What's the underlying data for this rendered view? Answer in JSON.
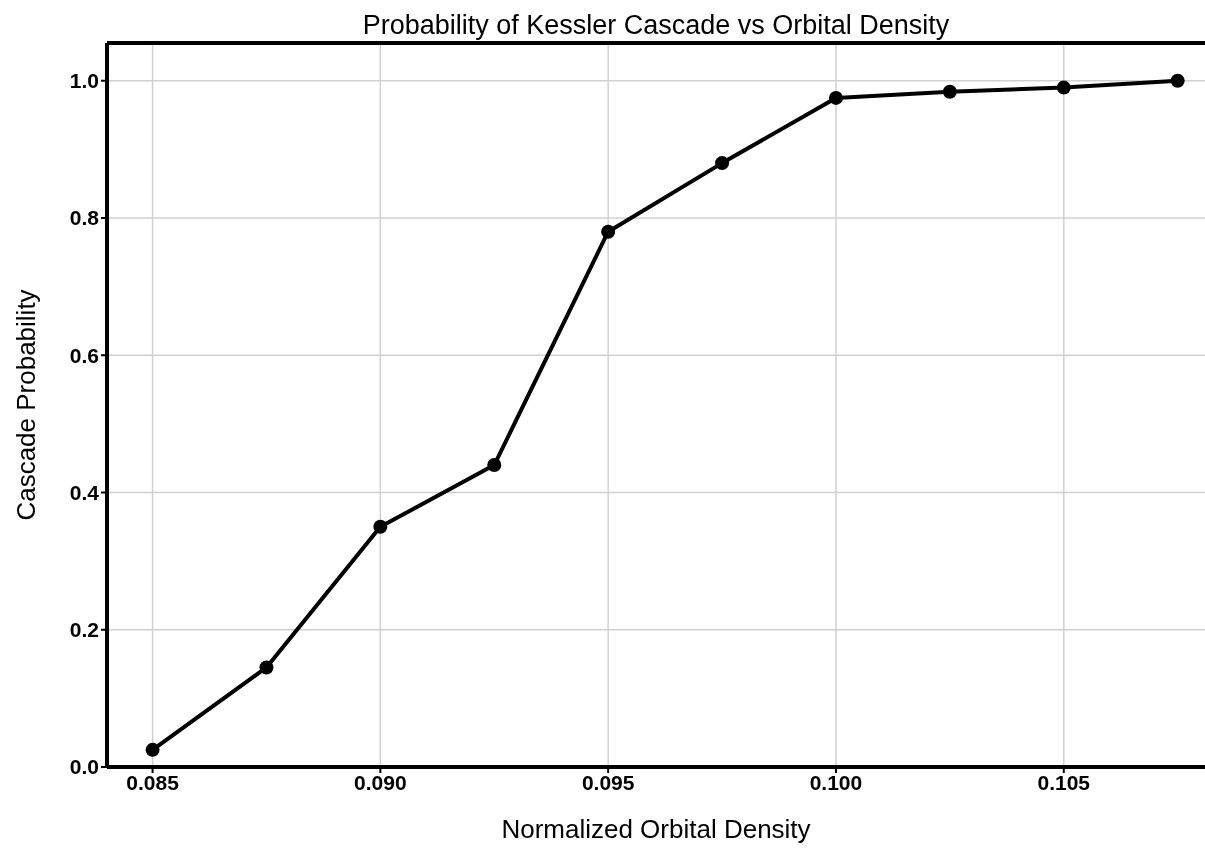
{
  "chart_data": {
    "type": "line",
    "title": "Probability of Kessler Cascade vs Orbital Density",
    "xlabel": "Normalized Orbital Density",
    "ylabel": "Cascade Probability",
    "x": [
      0.085,
      0.0875,
      0.09,
      0.0925,
      0.095,
      0.0975,
      0.1,
      0.1025,
      0.105,
      0.1075
    ],
    "series": [
      {
        "color": "#000000",
        "values": [
          0.025,
          0.145,
          0.35,
          0.44,
          0.78,
          0.88,
          0.975,
          0.984,
          0.99,
          1.0
        ]
      }
    ],
    "xlim": [
      0.084,
      0.1081
    ],
    "ylim": [
      0,
      1.055
    ],
    "xticks": [
      0.085,
      {
        "value": 0.09,
        "label": "0.090"
      },
      0.095,
      {
        "value": 0.1,
        "label": "0.100"
      },
      0.105
    ],
    "yticks": [
      {
        "value": 0,
        "label": "0.0"
      },
      {
        "value": 0.2,
        "label": "0.2"
      },
      {
        "value": 0.4,
        "label": "0.4"
      },
      {
        "value": 0.6,
        "label": "0.6"
      },
      {
        "value": 0.8,
        "label": "0.8"
      },
      {
        "value": 1,
        "label": "1.0"
      }
    ],
    "grid": true,
    "marker": "circle",
    "line_style": "solid"
  }
}
